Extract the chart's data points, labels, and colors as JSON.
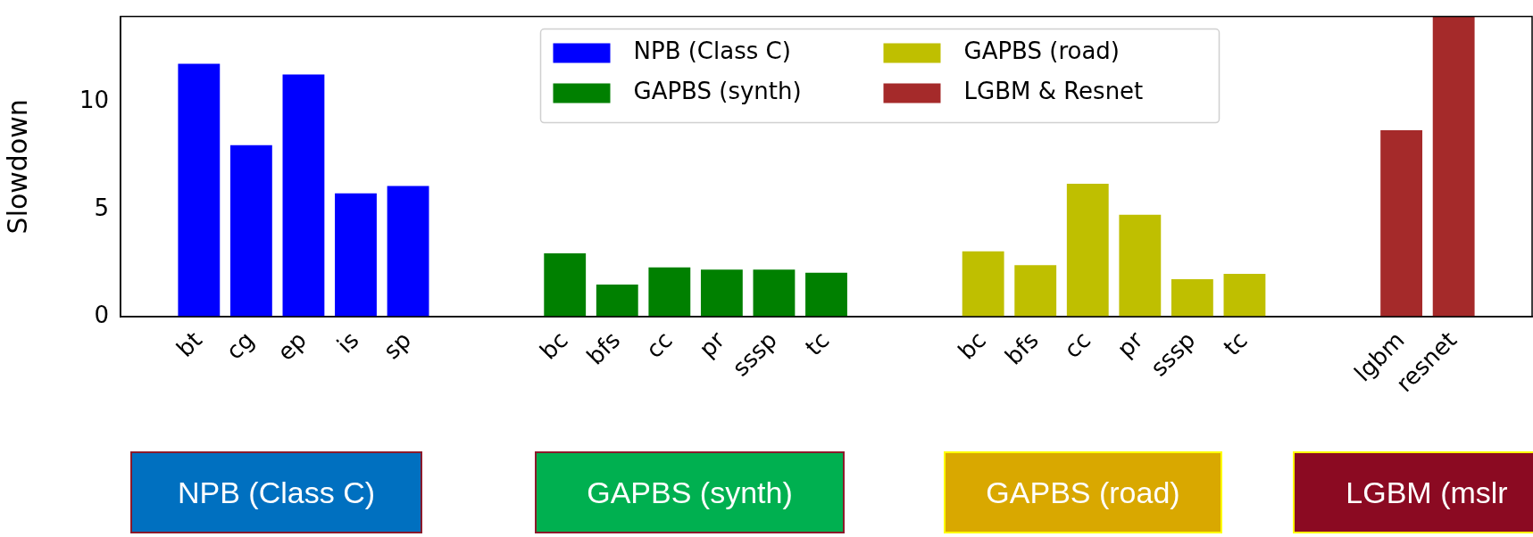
{
  "chart_data": {
    "type": "bar",
    "ylabel": "Slowdown",
    "categories": [
      null,
      "bt",
      "cg",
      "ep",
      "is",
      "sp",
      null,
      null,
      "bc",
      "bfs",
      "cc",
      "pr",
      "sssp",
      "tc",
      null,
      null,
      "bc",
      "bfs",
      "cc",
      "pr",
      "sssp",
      "tc",
      null,
      null,
      "lgbm",
      "resnet",
      null
    ],
    "series": [
      {
        "name": "NPB (Class C)",
        "color": "#0000ff",
        "values": [
          null,
          11.8,
          8.0,
          11.3,
          5.75,
          6.1,
          null,
          null,
          null,
          null,
          null,
          null,
          null,
          null,
          null,
          null,
          null,
          null,
          null,
          null,
          null,
          null,
          null,
          null,
          null,
          null,
          null
        ]
      },
      {
        "name": "GAPBS (synth)",
        "color": "#008000",
        "values": [
          null,
          null,
          null,
          null,
          null,
          null,
          null,
          null,
          2.95,
          1.5,
          2.3,
          2.2,
          2.2,
          2.05,
          null,
          null,
          null,
          null,
          null,
          null,
          null,
          null,
          null,
          null,
          null,
          null,
          null
        ]
      },
      {
        "name": "GAPBS (road)",
        "color": "#bfbf00",
        "values": [
          null,
          null,
          null,
          null,
          null,
          null,
          null,
          null,
          null,
          null,
          null,
          null,
          null,
          null,
          null,
          null,
          3.05,
          2.4,
          6.2,
          4.75,
          1.75,
          2.0,
          null,
          null,
          null,
          null,
          null
        ]
      },
      {
        "name": "LGBM & Resnet",
        "color": "#a52a2a",
        "values": [
          null,
          null,
          null,
          null,
          null,
          null,
          null,
          null,
          null,
          null,
          null,
          null,
          null,
          null,
          null,
          null,
          null,
          null,
          null,
          null,
          null,
          null,
          null,
          null,
          8.7,
          14,
          null
        ]
      }
    ],
    "ylim": [
      0,
      14
    ],
    "yticks": [
      0,
      5,
      10
    ],
    "grid": false,
    "legend": "top",
    "annotations": [
      "NPB (Class C)",
      "GAPBS (synth)",
      "GAPBS (road)",
      "LGBM (mslr"
    ]
  }
}
